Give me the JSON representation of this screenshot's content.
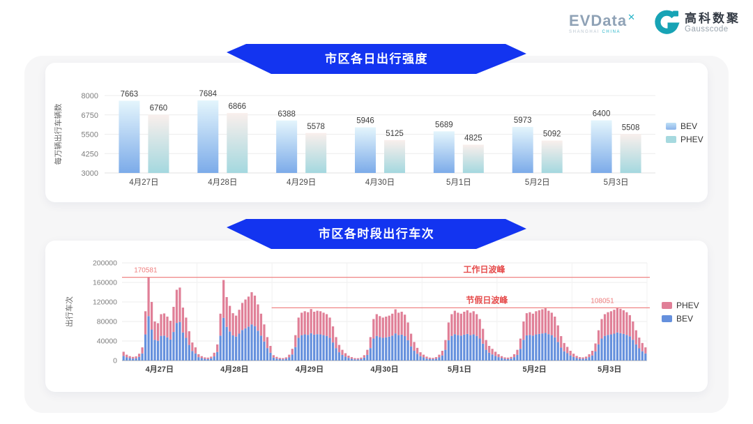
{
  "header": {
    "evdata_logo": {
      "text": "EVData",
      "sup": "✕",
      "tagline_left": "SHANGHAI",
      "tagline_right": "CHINA"
    },
    "gausscode_logo": {
      "cn": "高科数聚",
      "en": "Gausscode"
    }
  },
  "colors": {
    "banner_blue": "#1334f0",
    "teal_accent": "#18a3b5",
    "bev_gradient_top": "#e4f5fc",
    "bev_gradient_bottom": "#7cabe9",
    "phev_gradient_top": "#f9efec",
    "phev_gradient_bottom": "#a4d8df",
    "bev_blue": "#6590dd",
    "phev_pink": "#e07f97",
    "peak_line_red": "#ef8585",
    "peak_label_red": "#e64c4c",
    "peak_value_red": "#ef7d7d"
  },
  "chart_data": [
    {
      "type": "bar",
      "title": "市区各日出行强度",
      "ylabel": "每万辆出行车辆数",
      "categories": [
        "4月27日",
        "4月28日",
        "4月29日",
        "4月30日",
        "5月1日",
        "5月2日",
        "5月3日"
      ],
      "series": [
        {
          "name": "BEV",
          "values": [
            7663,
            7684,
            6388,
            5946,
            5689,
            5973,
            6400
          ]
        },
        {
          "name": "PHEV",
          "values": [
            6760,
            6866,
            5578,
            5125,
            4825,
            5092,
            5508
          ]
        }
      ],
      "ylim": [
        3000,
        8000
      ],
      "yticks": [
        3000,
        4250,
        5500,
        6750,
        8000
      ],
      "grid": true,
      "legend_position": "right"
    },
    {
      "type": "stacked-bar",
      "title": "市区各时段出行车次",
      "ylabel": "出行车次",
      "categories": [
        "4月27日",
        "4月28日",
        "4月29日",
        "4月30日",
        "5月1日",
        "5月2日",
        "5月3日"
      ],
      "hours_per_day": 24,
      "ylim": [
        0,
        200000
      ],
      "yticks": [
        0,
        40000,
        80000,
        120000,
        160000,
        200000
      ],
      "grid": true,
      "legend_position": "right",
      "series": [
        {
          "name": "BEV",
          "values": [
            [
              9500,
              6500,
              5000,
              4000,
              4500,
              7500,
              14500,
              53500,
              91000,
              63500,
              42500,
              40500,
              50500,
              51000,
              47500,
              43000,
              58500,
              77000,
              79000,
              57500,
              46500,
              32000,
              19500,
              14500
            ],
            [
              7000,
              5000,
              3500,
              3000,
              4500,
              8500,
              17500,
              51000,
              87500,
              69000,
              59500,
              51500,
              49000,
              55000,
              62500,
              66000,
              69500,
              74000,
              70500,
              61000,
              51000,
              39000,
              25500,
              16000
            ],
            [
              6000,
              4000,
              3000,
              2500,
              3500,
              6500,
              12500,
              27500,
              46500,
              52000,
              53500,
              52500,
              56000,
              53000,
              54000,
              53500,
              52000,
              50500,
              46500,
              37000,
              25500,
              17000,
              11500,
              8000
            ],
            [
              5500,
              3500,
              2500,
              2500,
              3000,
              6000,
              11500,
              25500,
              45000,
              50500,
              48000,
              46500,
              47500,
              49000,
              51000,
              55500,
              52000,
              53000,
              50000,
              41500,
              29000,
              20000,
              14000,
              9000
            ],
            [
              6500,
              4000,
              3000,
              3000,
              3500,
              6500,
              10500,
              22000,
              41500,
              50500,
              54000,
              52000,
              51000,
              53000,
              54500,
              52000,
              53500,
              50500,
              45000,
              34500,
              22000,
              16000,
              12500,
              9500
            ],
            [
              7000,
              5000,
              3500,
              3000,
              4000,
              7000,
              11500,
              24000,
              42500,
              51500,
              52500,
              51000,
              53500,
              54500,
              55500,
              56500,
              54000,
              52000,
              47500,
              38000,
              26500,
              19000,
              15000,
              10500
            ],
            [
              7500,
              5000,
              3500,
              3500,
              4000,
              7000,
              10500,
              18500,
              33000,
              45000,
              50500,
              52500,
              53500,
              55000,
              57500,
              56000,
              54500,
              52500,
              49500,
              42500,
              33000,
              25000,
              19000,
              14500
            ]
          ]
        },
        {
          "name": "PHEV",
          "values": [
            [
              8500,
              5500,
              4000,
              3500,
              4000,
              6500,
              12500,
              47500,
              79581,
              56500,
              37500,
              36000,
              44500,
              45500,
              42500,
              38500,
              51500,
              68000,
              70500,
              51000,
              41500,
              28000,
              17500,
              12500
            ],
            [
              6000,
              4000,
              3000,
              3000,
              3500,
              7500,
              15500,
              45000,
              77500,
              61000,
              52500,
              45500,
              43000,
              49000,
              55500,
              59000,
              61500,
              66000,
              62500,
              54000,
              45000,
              35000,
              22500,
              14000
            ],
            [
              5000,
              3500,
              2500,
              2500,
              3000,
              5500,
              11500,
              24500,
              41500,
              46000,
              47500,
              46500,
              49500,
              47000,
              48000,
              47500,
              46000,
              44500,
              41500,
              33000,
              22500,
              15000,
              10500,
              7000
            ],
            [
              4500,
              3500,
              2500,
              2300,
              3000,
              5000,
              10500,
              22500,
              40000,
              44500,
              43000,
              41500,
              42500,
              43000,
              45000,
              49500,
              46000,
              47000,
              44000,
              36500,
              26000,
              18000,
              12000,
              8000
            ],
            [
              5500,
              4000,
              3000,
              2500,
              3500,
              5500,
              9500,
              20000,
              36500,
              44500,
              48000,
              46000,
              45000,
              47000,
              48500,
              46000,
              47500,
              44500,
              40000,
              30500,
              20000,
              14000,
              11500,
              8500
            ],
            [
              6000,
              4000,
              3000,
              3000,
              3500,
              6000,
              10500,
              21000,
              37500,
              45500,
              46500,
              45000,
              47500,
              48500,
              49500,
              50500,
              48000,
              46000,
              42500,
              34000,
              23500,
              17000,
              13000,
              9500
            ],
            [
              6500,
              4500,
              3500,
              3000,
              4000,
              6000,
              9500,
              16500,
              29000,
              40000,
              44500,
              46500,
              47500,
              49000,
              50551,
              50000,
              48500,
              46500,
              43500,
              37500,
              29000,
              22000,
              17000,
              12500
            ]
          ]
        }
      ],
      "annotations": {
        "workday_peak": {
          "label": "工作日波峰",
          "value": 170581,
          "value_label": "170581",
          "start_frac": 0.0,
          "label_frac": 0.69,
          "value_frac": 0.045
        },
        "holiday_peak": {
          "label": "节假日波峰",
          "value": 108051,
          "value_label": "108051",
          "start_frac": 0.285,
          "label_frac": 0.695,
          "value_frac": 0.915
        }
      }
    }
  ]
}
